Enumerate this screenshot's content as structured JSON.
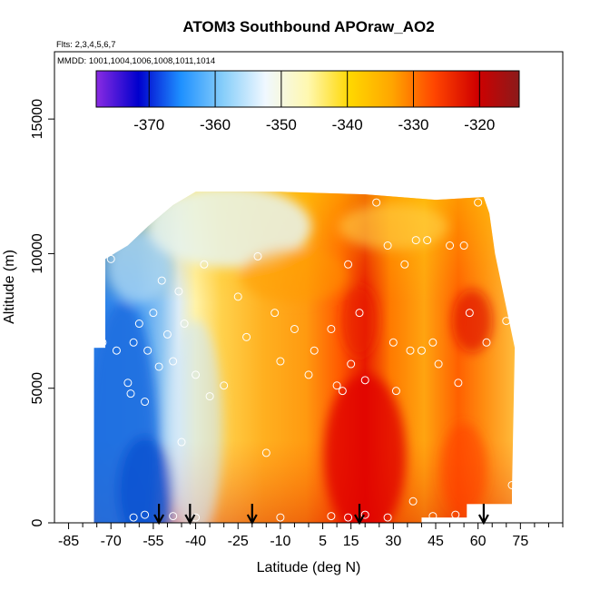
{
  "chart_data": {
    "type": "heatmap",
    "title": "ATOM3 Southbound APOraw_AO2",
    "flights_note": "Flts: 2,3,4,5,6,7",
    "dates_note": "MMDD: 1001,1004,1006,1008,1011,1014",
    "xlabel": "Latitude (deg N)",
    "ylabel": "Altitude (m)",
    "xlim": [
      -90,
      90
    ],
    "ylim": [
      0,
      17500
    ],
    "x_ticks": [
      -85,
      -70,
      -55,
      -40,
      -25,
      -10,
      5,
      15,
      30,
      45,
      60,
      75
    ],
    "x_tick_labels": [
      "-85",
      "-70",
      "-55",
      "-40",
      "-25",
      "-10",
      "5",
      "15",
      "30",
      "45",
      "60",
      "75"
    ],
    "x_minor_ticks": [
      -80,
      -75,
      -65,
      -60,
      -50,
      -45,
      -35,
      -30,
      -20,
      -15,
      -5,
      0,
      10,
      20,
      25,
      35,
      40,
      50,
      55,
      65,
      70,
      80,
      85,
      90
    ],
    "y_ticks": [
      0,
      5000,
      10000,
      15000
    ],
    "y_tick_labels": [
      "0",
      "5000",
      "10000",
      "15000"
    ],
    "colorbar": {
      "range": [
        -378,
        -314
      ],
      "ticks": [
        -370,
        -360,
        -350,
        -340,
        -330,
        -320
      ],
      "tick_labels": [
        "-370",
        "-360",
        "-350",
        "-340",
        "-330",
        "-320"
      ],
      "colors": [
        "#8A2BE2",
        "#0000CD",
        "#1E90FF",
        "#87CEFA",
        "#F0F8FF",
        "#FFF8B0",
        "#FFD700",
        "#FFA500",
        "#FF4500",
        "#D00000",
        "#8B1A1A"
      ]
    },
    "arrows_lat": [
      -53,
      -42,
      -20,
      18,
      62
    ],
    "arrow_color": "#000000",
    "observations": [
      {
        "lat": -75,
        "alt": 7000
      },
      {
        "lat": -73,
        "alt": 6700
      },
      {
        "lat": -70,
        "alt": 9800
      },
      {
        "lat": -68,
        "alt": 6400
      },
      {
        "lat": -64,
        "alt": 5200
      },
      {
        "lat": -63,
        "alt": 4800
      },
      {
        "lat": -62,
        "alt": 6700
      },
      {
        "lat": -60,
        "alt": 7400
      },
      {
        "lat": -58,
        "alt": 4500
      },
      {
        "lat": -57,
        "alt": 6400
      },
      {
        "lat": -55,
        "alt": 7800
      },
      {
        "lat": -53,
        "alt": 5800
      },
      {
        "lat": -52,
        "alt": 9000
      },
      {
        "lat": -50,
        "alt": 7000
      },
      {
        "lat": -48,
        "alt": 6000
      },
      {
        "lat": -46,
        "alt": 8600
      },
      {
        "lat": -45,
        "alt": 3000
      },
      {
        "lat": -44,
        "alt": 7400
      },
      {
        "lat": -40,
        "alt": 5500
      },
      {
        "lat": -37,
        "alt": 9600
      },
      {
        "lat": -35,
        "alt": 4700
      },
      {
        "lat": -30,
        "alt": 5100
      },
      {
        "lat": -25,
        "alt": 8400
      },
      {
        "lat": -22,
        "alt": 6900
      },
      {
        "lat": -18,
        "alt": 9900
      },
      {
        "lat": -15,
        "alt": 2600
      },
      {
        "lat": -12,
        "alt": 7800
      },
      {
        "lat": -10,
        "alt": 6000
      },
      {
        "lat": -5,
        "alt": 7200
      },
      {
        "lat": 0,
        "alt": 5500
      },
      {
        "lat": 2,
        "alt": 6400
      },
      {
        "lat": 8,
        "alt": 7200
      },
      {
        "lat": 10,
        "alt": 5100
      },
      {
        "lat": 12,
        "alt": 4900
      },
      {
        "lat": 14,
        "alt": 9600
      },
      {
        "lat": 15,
        "alt": 5900
      },
      {
        "lat": 18,
        "alt": 7800
      },
      {
        "lat": 20,
        "alt": 5300
      },
      {
        "lat": 24,
        "alt": 11900
      },
      {
        "lat": 28,
        "alt": 10300
      },
      {
        "lat": 30,
        "alt": 6700
      },
      {
        "lat": 31,
        "alt": 4900
      },
      {
        "lat": 34,
        "alt": 9600
      },
      {
        "lat": 36,
        "alt": 6400
      },
      {
        "lat": 38,
        "alt": 10500
      },
      {
        "lat": 40,
        "alt": 6400
      },
      {
        "lat": 42,
        "alt": 10500
      },
      {
        "lat": 44,
        "alt": 6700
      },
      {
        "lat": 46,
        "alt": 5900
      },
      {
        "lat": 50,
        "alt": 10300
      },
      {
        "lat": 53,
        "alt": 5200
      },
      {
        "lat": 55,
        "alt": 10300
      },
      {
        "lat": 57,
        "alt": 7800
      },
      {
        "lat": 60,
        "alt": 11900
      },
      {
        "lat": 63,
        "alt": 6700
      },
      {
        "lat": 70,
        "alt": 7500
      },
      {
        "lat": 72,
        "alt": 1400
      },
      {
        "lat": -62,
        "alt": 200
      },
      {
        "lat": -58,
        "alt": 300
      },
      {
        "lat": -48,
        "alt": 250
      },
      {
        "lat": -40,
        "alt": 200
      },
      {
        "lat": -10,
        "alt": 200
      },
      {
        "lat": 8,
        "alt": 250
      },
      {
        "lat": 14,
        "alt": 200
      },
      {
        "lat": 20,
        "alt": 300
      },
      {
        "lat": 28,
        "alt": 200
      },
      {
        "lat": 37,
        "alt": 800
      },
      {
        "lat": 44,
        "alt": 250
      },
      {
        "lat": 52,
        "alt": 300
      },
      {
        "lat": 62,
        "alt": 250
      }
    ]
  }
}
